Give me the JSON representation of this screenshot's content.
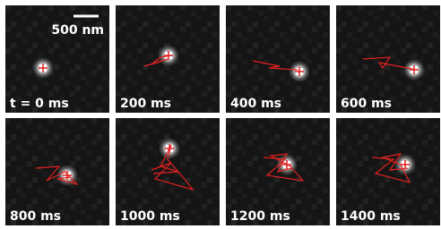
{
  "scale_bar": {
    "label": "500 nm"
  },
  "panels": [
    {
      "label": "t = 0 ms"
    },
    {
      "label": "200 ms"
    },
    {
      "label": "400 ms"
    },
    {
      "label": "600 ms"
    },
    {
      "label": "800 ms"
    },
    {
      "label": "1000 ms"
    },
    {
      "label": "1200 ms"
    },
    {
      "label": "1400 ms"
    }
  ]
}
